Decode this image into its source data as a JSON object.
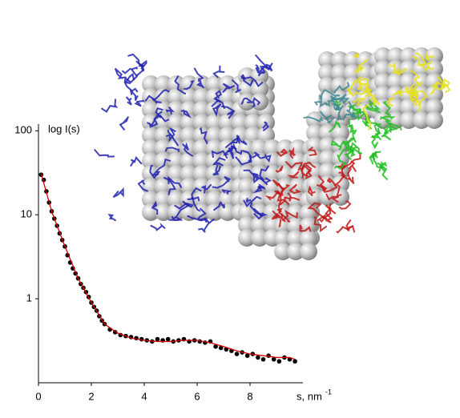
{
  "chart_data": {
    "type": "scatter",
    "y_label": "log I(s)",
    "x_label": "s, nm",
    "x_label_superscript": "-1",
    "ylog": true,
    "xlim": [
      0,
      10
    ],
    "ylim": [
      0.1,
      120
    ],
    "xticks": [
      0,
      2,
      4,
      6,
      8
    ],
    "yticks": [
      1,
      10,
      100
    ],
    "series": [
      {
        "style": "points",
        "color": "#000000",
        "x": [
          0.1,
          0.2,
          0.3,
          0.4,
          0.5,
          0.6,
          0.7,
          0.8,
          0.9,
          1.0,
          1.1,
          1.2,
          1.3,
          1.4,
          1.5,
          1.6,
          1.7,
          1.8,
          1.9,
          2.0,
          2.1,
          2.2,
          2.3,
          2.4,
          2.5,
          2.7,
          2.9,
          3.1,
          3.3,
          3.5,
          3.7,
          3.9,
          4.1,
          4.3,
          4.5,
          4.7,
          4.9,
          5.1,
          5.3,
          5.5,
          5.7,
          5.9,
          6.1,
          6.3,
          6.5,
          6.7,
          6.9,
          7.1,
          7.3,
          7.5,
          7.7,
          7.9,
          8.1,
          8.3,
          8.5,
          8.7,
          8.9,
          9.1,
          9.3,
          9.5,
          9.7
        ],
        "values": [
          30,
          26,
          19,
          14,
          11,
          9,
          7.4,
          6,
          5,
          4.2,
          3.3,
          2.7,
          2.3,
          2.0,
          1.75,
          1.5,
          1.35,
          1.2,
          1.05,
          0.9,
          0.8,
          0.72,
          0.62,
          0.55,
          0.5,
          0.43,
          0.4,
          0.37,
          0.36,
          0.35,
          0.34,
          0.33,
          0.32,
          0.31,
          0.33,
          0.32,
          0.33,
          0.31,
          0.32,
          0.33,
          0.31,
          0.32,
          0.31,
          0.3,
          0.31,
          0.27,
          0.26,
          0.25,
          0.24,
          0.22,
          0.23,
          0.21,
          0.22,
          0.2,
          0.19,
          0.21,
          0.19,
          0.18,
          0.2,
          0.19,
          0.18
        ]
      },
      {
        "style": "line",
        "color": "#d40000",
        "x": [
          0.1,
          0.5,
          1,
          1.5,
          2,
          2.5,
          3,
          3.5,
          4,
          4.5,
          5,
          5.5,
          6,
          6.5,
          7,
          7.5,
          8,
          8.5,
          9,
          9.5,
          9.7
        ],
        "values": [
          31,
          11,
          4.2,
          1.75,
          0.9,
          0.5,
          0.39,
          0.34,
          0.32,
          0.31,
          0.31,
          0.32,
          0.32,
          0.3,
          0.27,
          0.24,
          0.22,
          0.21,
          0.2,
          0.2,
          0.19
        ]
      }
    ]
  }
}
